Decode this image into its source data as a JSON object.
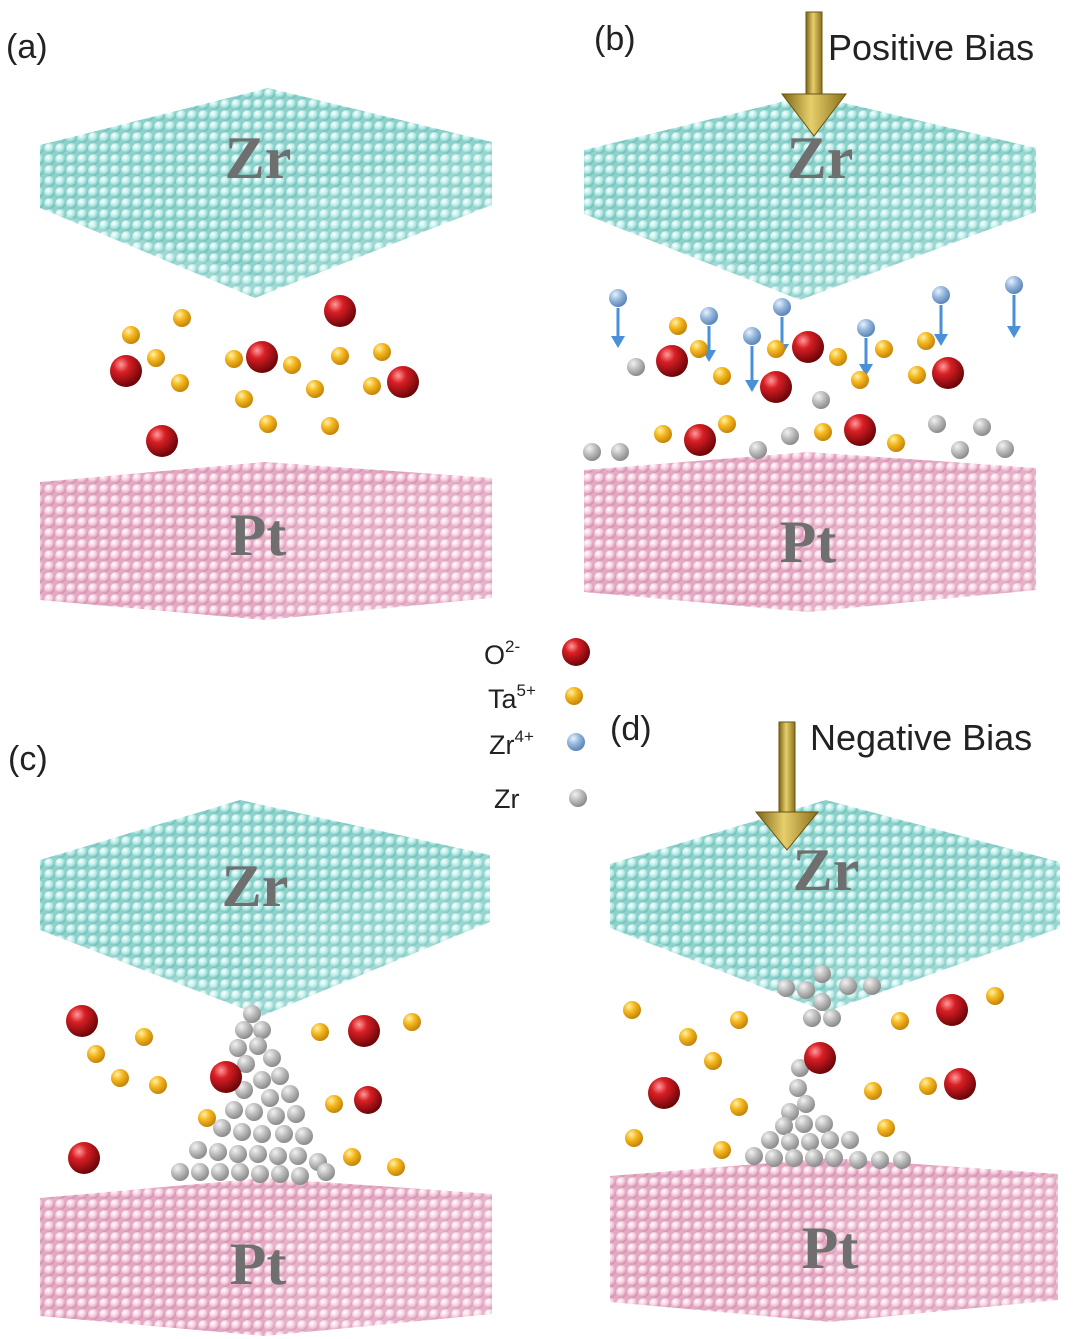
{
  "panels": [
    {
      "label": "(a)",
      "top_electrode": "Zr",
      "bottom_electrode": "Pt",
      "bias": ""
    },
    {
      "label": "(b)",
      "top_electrode": "Zr",
      "bottom_electrode": "Pt",
      "bias": "Positive Bias"
    },
    {
      "label": "(c)",
      "top_electrode": "Zr",
      "bottom_electrode": "Pt",
      "bias": ""
    },
    {
      "label": "(d)",
      "top_electrode": "Zr",
      "bottom_electrode": "Pt",
      "bias": "Negative Bias"
    }
  ],
  "legend": [
    {
      "base": "O",
      "sup": "2-",
      "species": "oxygen-ion",
      "color": "#c8141b"
    },
    {
      "base": "Ta",
      "sup": "5+",
      "species": "tantalum-ion",
      "color": "#f2b21c"
    },
    {
      "base": "Zr",
      "sup": "4+",
      "species": "zirconium-ion",
      "color": "#8fb3d9"
    },
    {
      "base": "Zr",
      "sup": "",
      "species": "zirconium-atom",
      "color": "#b7b7b7"
    }
  ],
  "colors": {
    "zr_electrode": "#b3ebe6",
    "pt_electrode": "#f6c9dc",
    "arrow_gold": "#c9a93a",
    "migration_arrow": "#4a90d9"
  }
}
